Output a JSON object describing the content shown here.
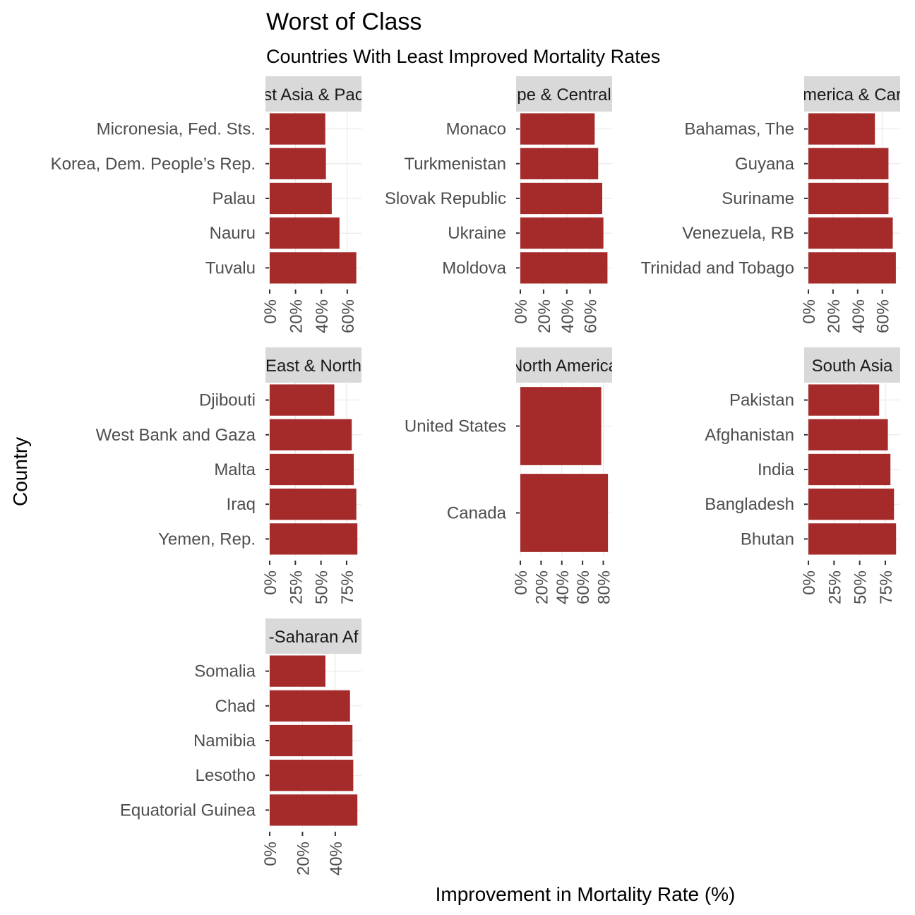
{
  "chart_data": {
    "type": "bar",
    "orientation": "horizontal",
    "title": "Worst of Class",
    "subtitle": "Countries With Least Improved Mortality Rates",
    "xlabel": "Improvement in Mortality Rate (%)",
    "ylabel": "Country",
    "grid": true,
    "bar_color": "#A52A2A",
    "strip_color": "#D9D9D9",
    "grid_color": "#E6E6E6",
    "facets": [
      {
        "panel": "East Asia & Pacific",
        "strip_visible": "st Asia & Pac",
        "categories": [
          "Micronesia, Fed. Sts.",
          "Korea, Dem. People’s Rep.",
          "Palau",
          "Nauru",
          "Tuvalu"
        ],
        "values": [
          43,
          43.5,
          48,
          54,
          67
        ],
        "xlim": [
          0,
          71
        ],
        "ticks": [
          0,
          20,
          40,
          60
        ],
        "tick_labels": [
          "0%",
          "20%",
          "40%",
          "60%"
        ]
      },
      {
        "panel": "Europe & Central Asia",
        "strip_visible": "pe & Central",
        "categories": [
          "Monaco",
          "Turkmenistan",
          "Slovak Republic",
          "Ukraine",
          "Moldova"
        ],
        "values": [
          64,
          67,
          70.5,
          71.5,
          75
        ],
        "xlim": [
          0,
          79
        ],
        "ticks": [
          0,
          20,
          40,
          60
        ],
        "tick_labels": [
          "0%",
          "20%",
          "40%",
          "60%"
        ]
      },
      {
        "panel": "Latin America & Caribbean",
        "strip_visible": "merica & Car",
        "categories": [
          "Bahamas, The",
          "Guyana",
          "Suriname",
          "Venezuela, RB",
          "Trinidad and Tobago"
        ],
        "values": [
          54,
          65,
          65,
          68.5,
          71
        ],
        "xlim": [
          0,
          74.5
        ],
        "ticks": [
          0,
          20,
          40,
          60
        ],
        "tick_labels": [
          "0%",
          "20%",
          "40%",
          "60%"
        ]
      },
      {
        "panel": "Middle East & North Africa",
        "strip_visible": "East & North",
        "categories": [
          "Djibouti",
          "West Bank and Gaza",
          "Malta",
          "Iraq",
          "Yemen, Rep."
        ],
        "values": [
          63,
          80,
          82,
          84.5,
          85.5
        ],
        "xlim": [
          0,
          89.5
        ],
        "ticks": [
          0,
          25,
          50,
          75
        ],
        "tick_labels": [
          "0%",
          "25%",
          "50%",
          "75%"
        ]
      },
      {
        "panel": "North America",
        "strip_visible": "North America",
        "categories": [
          "United States",
          "Canada"
        ],
        "values": [
          78,
          84.5
        ],
        "xlim": [
          0,
          88.5
        ],
        "ticks": [
          0,
          20,
          40,
          60,
          80
        ],
        "tick_labels": [
          "0%",
          "20%",
          "40%",
          "60%",
          "80%"
        ]
      },
      {
        "panel": "South Asia",
        "strip_visible": "South Asia",
        "categories": [
          "Pakistan",
          "Afghanistan",
          "India",
          "Bangladesh",
          "Bhutan"
        ],
        "values": [
          69,
          77.5,
          80,
          83.5,
          85.5
        ],
        "xlim": [
          0,
          89.5
        ],
        "ticks": [
          0,
          25,
          50,
          75
        ],
        "tick_labels": [
          "0%",
          "25%",
          "50%",
          "75%"
        ]
      },
      {
        "panel": "Sub-Saharan Africa",
        "strip_visible": "-Saharan Af",
        "categories": [
          "Somalia",
          "Chad",
          "Namibia",
          "Lesotho",
          "Equatorial Guinea"
        ],
        "values": [
          34,
          49,
          50.5,
          51,
          53.5
        ],
        "xlim": [
          0,
          56
        ],
        "ticks": [
          0,
          20,
          40
        ],
        "tick_labels": [
          "0%",
          "20%",
          "40%"
        ]
      }
    ]
  }
}
